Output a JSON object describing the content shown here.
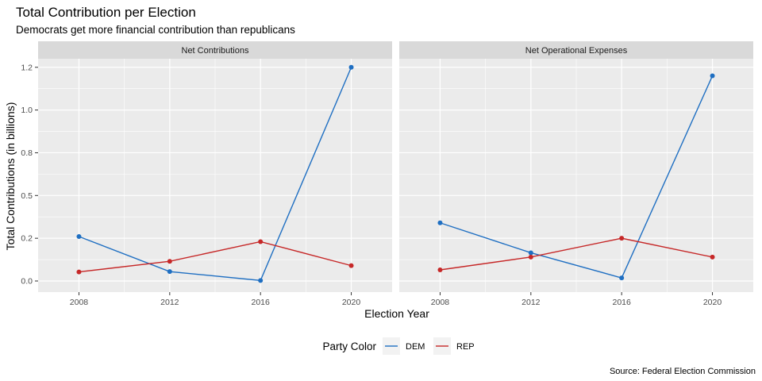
{
  "chart_data": {
    "type": "line",
    "title": "Total Contribution per Election",
    "subtitle": "Democrats get more financial contribution than republicans",
    "caption": "Source: Federal Election Commission",
    "xlabel": "Election Year",
    "ylabel": "Total Contributions (in billions)",
    "x": [
      2008,
      2012,
      2016,
      2020
    ],
    "xlim": [
      2006.2,
      2021.8
    ],
    "ylim": [
      -0.065,
      1.3
    ],
    "y_ticks": [
      {
        "value": 0.0,
        "label": "0.0"
      },
      {
        "value": 0.25,
        "label": "0.2"
      },
      {
        "value": 0.5,
        "label": "0.5"
      },
      {
        "value": 0.75,
        "label": "0.8"
      },
      {
        "value": 1.0,
        "label": "1.0"
      },
      {
        "value": 1.25,
        "label": "1.2"
      }
    ],
    "x_tick_labels": [
      "2008",
      "2012",
      "2016",
      "2020"
    ],
    "grid": true,
    "legend": {
      "title": "Party Color",
      "position": "bottom",
      "entries": [
        "DEM",
        "REP"
      ]
    },
    "facets": [
      {
        "label": "Net Contributions",
        "series": [
          {
            "name": "DEM",
            "color": "#1f6fc2",
            "values": [
              0.26,
              0.055,
              0.003,
              1.25
            ]
          },
          {
            "name": "REP",
            "color": "#c62828",
            "values": [
              0.053,
              0.115,
              0.23,
              0.09
            ]
          }
        ]
      },
      {
        "label": "Net Operational Expenses",
        "series": [
          {
            "name": "DEM",
            "color": "#1f6fc2",
            "values": [
              0.34,
              0.165,
              0.018,
              1.2
            ]
          },
          {
            "name": "REP",
            "color": "#c62828",
            "values": [
              0.065,
              0.14,
              0.25,
              0.14
            ]
          }
        ]
      }
    ]
  }
}
